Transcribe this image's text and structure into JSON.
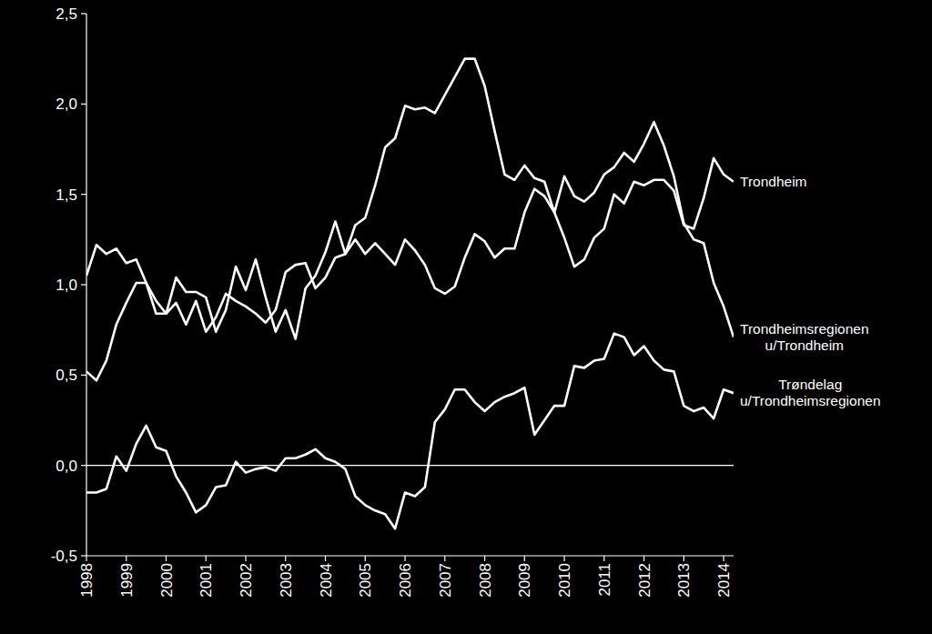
{
  "chart_data": {
    "type": "line",
    "x": [
      1998,
      1998.25,
      1998.5,
      1998.75,
      1999,
      1999.25,
      1999.5,
      1999.75,
      2000,
      2000.25,
      2000.5,
      2000.75,
      2001,
      2001.25,
      2001.5,
      2001.75,
      2002,
      2002.25,
      2002.5,
      2002.75,
      2003,
      2003.25,
      2003.5,
      2003.75,
      2004,
      2004.25,
      2004.5,
      2004.75,
      2005,
      2005.25,
      2005.5,
      2005.75,
      2006,
      2006.25,
      2006.5,
      2006.75,
      2007,
      2007.25,
      2007.5,
      2007.75,
      2008,
      2008.25,
      2008.5,
      2008.75,
      2009,
      2009.25,
      2009.5,
      2009.75,
      2010,
      2010.25,
      2010.5,
      2010.75,
      2011,
      2011.25,
      2011.5,
      2011.75,
      2012,
      2012.25,
      2012.5,
      2012.75,
      2013,
      2013.25,
      2013.5,
      2013.75,
      2014,
      2014.25
    ],
    "series": [
      {
        "name": "Trondheim",
        "color": "#ffffff",
        "values": [
          0.52,
          0.47,
          0.58,
          0.78,
          0.9,
          1.01,
          1.01,
          0.91,
          0.84,
          0.9,
          0.78,
          0.91,
          0.74,
          0.82,
          0.95,
          0.91,
          0.88,
          0.84,
          0.79,
          0.86,
          1.07,
          1.11,
          1.12,
          0.98,
          1.04,
          1.15,
          1.17,
          1.25,
          1.17,
          1.23,
          1.17,
          1.11,
          1.25,
          1.19,
          1.11,
          0.98,
          0.95,
          0.99,
          1.15,
          1.28,
          1.24,
          1.15,
          1.2,
          1.2,
          1.4,
          1.53,
          1.49,
          1.4,
          1.26,
          1.1,
          1.14,
          1.26,
          1.31,
          1.5,
          1.45,
          1.57,
          1.55,
          1.58,
          1.58,
          1.52,
          1.33,
          1.31,
          1.48,
          1.7,
          1.61,
          1.57
        ]
      },
      {
        "name": "Trondheimsregionen u/Trondheim",
        "color": "#ffffff",
        "values": [
          1.05,
          1.22,
          1.17,
          1.2,
          1.12,
          1.14,
          1.01,
          0.84,
          0.84,
          1.04,
          0.96,
          0.96,
          0.93,
          0.74,
          0.86,
          1.1,
          0.97,
          1.14,
          0.93,
          0.74,
          0.86,
          0.7,
          0.98,
          1.05,
          1.18,
          1.35,
          1.17,
          1.33,
          1.37,
          1.55,
          1.76,
          1.81,
          1.99,
          1.97,
          1.98,
          1.95,
          2.05,
          2.15,
          2.25,
          2.25,
          2.1,
          1.85,
          1.61,
          1.58,
          1.66,
          1.59,
          1.57,
          1.4,
          1.6,
          1.49,
          1.46,
          1.51,
          1.61,
          1.65,
          1.73,
          1.68,
          1.78,
          1.9,
          1.77,
          1.6,
          1.34,
          1.25,
          1.23,
          1.01,
          0.88,
          0.71
        ]
      },
      {
        "name": "Trøndelag u/Trondheimsregionen",
        "color": "#ffffff",
        "values": [
          -0.15,
          -0.15,
          -0.13,
          0.05,
          -0.03,
          0.12,
          0.22,
          0.1,
          0.08,
          -0.06,
          -0.15,
          -0.26,
          -0.22,
          -0.12,
          -0.11,
          0.02,
          -0.04,
          -0.02,
          -0.01,
          -0.03,
          0.04,
          0.04,
          0.06,
          0.09,
          0.04,
          0.02,
          -0.02,
          -0.17,
          -0.22,
          -0.25,
          -0.27,
          -0.35,
          -0.15,
          -0.17,
          -0.12,
          0.24,
          0.31,
          0.42,
          0.42,
          0.35,
          0.3,
          0.35,
          0.38,
          0.4,
          0.43,
          0.17,
          0.25,
          0.33,
          0.33,
          0.55,
          0.54,
          0.58,
          0.59,
          0.73,
          0.71,
          0.61,
          0.66,
          0.58,
          0.53,
          0.52,
          0.33,
          0.3,
          0.32,
          0.26,
          0.42,
          0.4
        ]
      }
    ],
    "xlim": [
      1998,
      2014.25
    ],
    "xticks": [
      1998,
      1999,
      2000,
      2001,
      2002,
      2003,
      2004,
      2005,
      2006,
      2007,
      2008,
      2009,
      2010,
      2011,
      2012,
      2013,
      2014
    ],
    "ylim": [
      -0.5,
      2.5
    ],
    "yticks": [
      {
        "value": -0.5,
        "label": "-0,5"
      },
      {
        "value": 0,
        "label": "0,0"
      },
      {
        "value": 0.5,
        "label": "0,5"
      },
      {
        "value": 1,
        "label": "1,0"
      },
      {
        "value": 1.5,
        "label": "1,5"
      },
      {
        "value": 2,
        "label": "2,0"
      },
      {
        "value": 2.5,
        "label": "2,5"
      }
    ],
    "grid": false
  }
}
